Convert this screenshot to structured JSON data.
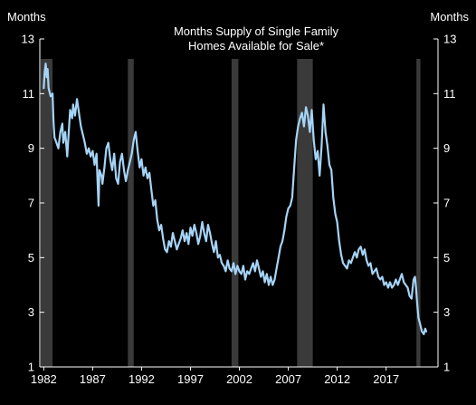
{
  "chart_data": {
    "type": "line",
    "title_lines": [
      "Months Supply of Single Family",
      "Homes Available for Sale*"
    ],
    "ylabel_left": "Months",
    "ylabel_right": "Months",
    "xlabel": "",
    "ylim": [
      1,
      13
    ],
    "xlim": [
      1981.6,
      2022.3
    ],
    "y_ticks": [
      1,
      3,
      5,
      7,
      9,
      11,
      13
    ],
    "y_tick_labels": [
      "1",
      "3",
      "5",
      "7",
      "9",
      "11",
      "13"
    ],
    "x_ticks": [
      1982,
      1987,
      1992,
      1997,
      2002,
      2007,
      2012,
      2017
    ],
    "x_tick_labels": [
      "1982",
      "1987",
      "1992",
      "1997",
      "2002",
      "2007",
      "2012",
      "2017"
    ],
    "grid": false,
    "legend": "none",
    "colors": {
      "background": "#000000",
      "line": "#a6d4f7",
      "recession": "#3a3a3a",
      "text": "#ffffff",
      "axis": "#ffffff"
    },
    "recessions": [
      {
        "start": 1981.55,
        "end": 1982.9
      },
      {
        "start": 1990.6,
        "end": 1991.2
      },
      {
        "start": 2001.2,
        "end": 2001.9
      },
      {
        "start": 2007.9,
        "end": 2009.5
      },
      {
        "start": 2020.1,
        "end": 2020.5
      }
    ],
    "series": [
      {
        "points": [
          [
            1982.0,
            11.2
          ],
          [
            1982.1,
            11.8
          ],
          [
            1982.2,
            12.1
          ],
          [
            1982.3,
            11.6
          ],
          [
            1982.4,
            11.9
          ],
          [
            1982.5,
            11.2
          ],
          [
            1982.7,
            10.9
          ],
          [
            1982.9,
            11.0
          ],
          [
            1983.0,
            10.0
          ],
          [
            1983.1,
            9.4
          ],
          [
            1983.3,
            9.2
          ],
          [
            1983.5,
            9.0
          ],
          [
            1983.7,
            9.6
          ],
          [
            1983.9,
            9.9
          ],
          [
            1984.0,
            9.2
          ],
          [
            1984.2,
            9.6
          ],
          [
            1984.4,
            8.7
          ],
          [
            1984.5,
            9.3
          ],
          [
            1984.7,
            10.4
          ],
          [
            1984.9,
            10.1
          ],
          [
            1985.0,
            10.6
          ],
          [
            1985.2,
            10.2
          ],
          [
            1985.4,
            10.8
          ],
          [
            1985.6,
            10.3
          ],
          [
            1985.8,
            9.8
          ],
          [
            1986.0,
            9.5
          ],
          [
            1986.2,
            9.2
          ],
          [
            1986.4,
            8.8
          ],
          [
            1986.6,
            9.0
          ],
          [
            1986.8,
            8.7
          ],
          [
            1987.0,
            8.9
          ],
          [
            1987.2,
            8.4
          ],
          [
            1987.4,
            8.8
          ],
          [
            1987.5,
            7.8
          ],
          [
            1987.6,
            6.9
          ],
          [
            1987.7,
            8.2
          ],
          [
            1987.9,
            8.0
          ],
          [
            1988.0,
            7.7
          ],
          [
            1988.2,
            8.3
          ],
          [
            1988.4,
            9.0
          ],
          [
            1988.6,
            9.2
          ],
          [
            1988.8,
            8.6
          ],
          [
            1989.0,
            8.2
          ],
          [
            1989.2,
            8.8
          ],
          [
            1989.4,
            7.9
          ],
          [
            1989.6,
            7.7
          ],
          [
            1989.8,
            8.5
          ],
          [
            1990.0,
            8.8
          ],
          [
            1990.2,
            8.2
          ],
          [
            1990.4,
            7.8
          ],
          [
            1990.6,
            8.2
          ],
          [
            1990.8,
            8.5
          ],
          [
            1991.0,
            8.8
          ],
          [
            1991.2,
            9.3
          ],
          [
            1991.4,
            9.6
          ],
          [
            1991.6,
            8.9
          ],
          [
            1991.8,
            8.3
          ],
          [
            1992.0,
            8.6
          ],
          [
            1992.2,
            8.0
          ],
          [
            1992.4,
            8.3
          ],
          [
            1992.6,
            7.9
          ],
          [
            1992.8,
            8.1
          ],
          [
            1993.0,
            7.5
          ],
          [
            1993.2,
            6.9
          ],
          [
            1993.4,
            7.1
          ],
          [
            1993.6,
            6.4
          ],
          [
            1993.8,
            6.0
          ],
          [
            1994.0,
            6.2
          ],
          [
            1994.2,
            5.7
          ],
          [
            1994.4,
            5.3
          ],
          [
            1994.6,
            5.2
          ],
          [
            1994.8,
            5.6
          ],
          [
            1995.0,
            5.4
          ],
          [
            1995.2,
            5.9
          ],
          [
            1995.4,
            5.6
          ],
          [
            1995.6,
            5.3
          ],
          [
            1995.8,
            5.5
          ],
          [
            1996.0,
            5.7
          ],
          [
            1996.2,
            6.0
          ],
          [
            1996.4,
            5.6
          ],
          [
            1996.6,
            5.9
          ],
          [
            1996.8,
            5.5
          ],
          [
            1997.0,
            6.1
          ],
          [
            1997.2,
            5.8
          ],
          [
            1997.4,
            6.2
          ],
          [
            1997.6,
            5.9
          ],
          [
            1997.8,
            5.5
          ],
          [
            1998.0,
            5.8
          ],
          [
            1998.2,
            6.3
          ],
          [
            1998.4,
            5.9
          ],
          [
            1998.6,
            5.6
          ],
          [
            1998.8,
            6.2
          ],
          [
            1999.0,
            5.9
          ],
          [
            1999.2,
            5.5
          ],
          [
            1999.4,
            5.2
          ],
          [
            1999.6,
            5.6
          ],
          [
            1999.8,
            5.0
          ],
          [
            2000.0,
            5.1
          ],
          [
            2000.2,
            4.8
          ],
          [
            2000.4,
            4.7
          ],
          [
            2000.6,
            4.5
          ],
          [
            2000.8,
            4.9
          ],
          [
            2001.0,
            4.6
          ],
          [
            2001.2,
            4.5
          ],
          [
            2001.4,
            4.8
          ],
          [
            2001.6,
            4.4
          ],
          [
            2001.8,
            4.7
          ],
          [
            2002.0,
            4.5
          ],
          [
            2002.2,
            4.4
          ],
          [
            2002.4,
            4.7
          ],
          [
            2002.6,
            4.2
          ],
          [
            2002.8,
            4.5
          ],
          [
            2003.0,
            4.4
          ],
          [
            2003.2,
            4.6
          ],
          [
            2003.4,
            4.8
          ],
          [
            2003.6,
            4.5
          ],
          [
            2003.8,
            4.9
          ],
          [
            2004.0,
            4.6
          ],
          [
            2004.2,
            4.3
          ],
          [
            2004.4,
            4.5
          ],
          [
            2004.6,
            4.1
          ],
          [
            2004.8,
            4.4
          ],
          [
            2005.0,
            4.0
          ],
          [
            2005.2,
            4.3
          ],
          [
            2005.4,
            4.0
          ],
          [
            2005.6,
            4.2
          ],
          [
            2005.8,
            4.6
          ],
          [
            2006.0,
            5.0
          ],
          [
            2006.2,
            5.4
          ],
          [
            2006.4,
            5.6
          ],
          [
            2006.6,
            6.0
          ],
          [
            2006.8,
            6.5
          ],
          [
            2007.0,
            6.8
          ],
          [
            2007.2,
            6.9
          ],
          [
            2007.4,
            7.2
          ],
          [
            2007.6,
            8.3
          ],
          [
            2007.8,
            9.3
          ],
          [
            2008.0,
            9.8
          ],
          [
            2008.2,
            10.1
          ],
          [
            2008.4,
            10.3
          ],
          [
            2008.6,
            9.8
          ],
          [
            2008.8,
            10.5
          ],
          [
            2009.0,
            10.2
          ],
          [
            2009.2,
            9.6
          ],
          [
            2009.4,
            10.4
          ],
          [
            2009.6,
            9.3
          ],
          [
            2009.8,
            8.6
          ],
          [
            2010.0,
            8.9
          ],
          [
            2010.2,
            8.0
          ],
          [
            2010.4,
            9.1
          ],
          [
            2010.6,
            10.6
          ],
          [
            2010.8,
            9.6
          ],
          [
            2011.0,
            9.1
          ],
          [
            2011.2,
            8.4
          ],
          [
            2011.4,
            8.2
          ],
          [
            2011.6,
            7.2
          ],
          [
            2011.8,
            6.6
          ],
          [
            2012.0,
            6.3
          ],
          [
            2012.2,
            5.6
          ],
          [
            2012.4,
            5.1
          ],
          [
            2012.6,
            4.8
          ],
          [
            2012.8,
            4.7
          ],
          [
            2013.0,
            4.6
          ],
          [
            2013.2,
            4.9
          ],
          [
            2013.4,
            4.8
          ],
          [
            2013.6,
            5.0
          ],
          [
            2013.8,
            5.2
          ],
          [
            2014.0,
            5.0
          ],
          [
            2014.2,
            5.3
          ],
          [
            2014.4,
            5.4
          ],
          [
            2014.6,
            5.1
          ],
          [
            2014.8,
            5.3
          ],
          [
            2015.0,
            4.9
          ],
          [
            2015.2,
            4.7
          ],
          [
            2015.4,
            4.8
          ],
          [
            2015.6,
            4.4
          ],
          [
            2015.8,
            4.5
          ],
          [
            2016.0,
            4.6
          ],
          [
            2016.2,
            4.3
          ],
          [
            2016.4,
            4.2
          ],
          [
            2016.6,
            4.3
          ],
          [
            2016.8,
            4.0
          ],
          [
            2017.0,
            4.1
          ],
          [
            2017.2,
            3.9
          ],
          [
            2017.4,
            4.1
          ],
          [
            2017.6,
            3.9
          ],
          [
            2017.8,
            4.0
          ],
          [
            2018.0,
            4.2
          ],
          [
            2018.2,
            4.0
          ],
          [
            2018.4,
            4.2
          ],
          [
            2018.6,
            4.4
          ],
          [
            2018.8,
            4.1
          ],
          [
            2019.0,
            4.0
          ],
          [
            2019.2,
            3.9
          ],
          [
            2019.4,
            3.6
          ],
          [
            2019.6,
            3.5
          ],
          [
            2019.8,
            4.2
          ],
          [
            2019.95,
            4.3
          ],
          [
            2020.05,
            3.9
          ],
          [
            2020.15,
            3.4
          ],
          [
            2020.3,
            2.8
          ],
          [
            2020.45,
            2.6
          ],
          [
            2020.65,
            2.3
          ],
          [
            2020.85,
            2.2
          ],
          [
            2021.0,
            2.4
          ],
          [
            2021.1,
            2.3
          ]
        ]
      }
    ]
  }
}
